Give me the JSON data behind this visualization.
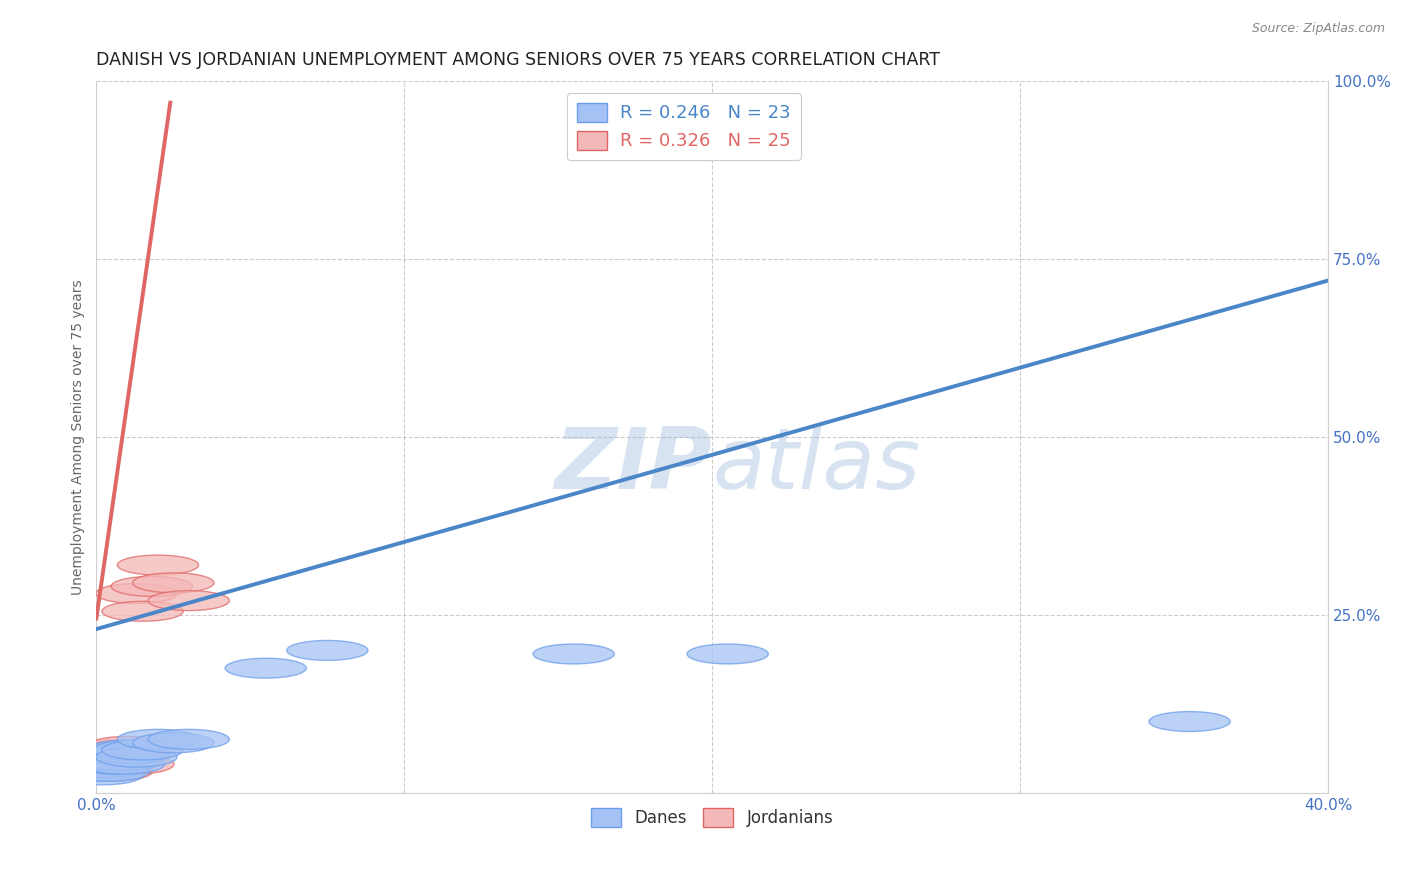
{
  "title": "DANISH VS JORDANIAN UNEMPLOYMENT AMONG SENIORS OVER 75 YEARS CORRELATION CHART",
  "source": "Source: ZipAtlas.com",
  "ylabel": "Unemployment Among Seniors over 75 years",
  "xlim": [
    0.0,
    0.4
  ],
  "ylim": [
    0.0,
    1.0
  ],
  "xticks": [
    0.0,
    0.1,
    0.2,
    0.3,
    0.4
  ],
  "xtick_labels": [
    "0.0%",
    "",
    "",
    "",
    "40.0%"
  ],
  "yticks": [
    0.0,
    0.25,
    0.5,
    0.75,
    1.0
  ],
  "ytick_labels": [
    "",
    "25.0%",
    "50.0%",
    "75.0%",
    "100.0%"
  ],
  "blue_color": "#a4c2f4",
  "pink_color": "#f4b8b8",
  "blue_edge_color": "#6d9eeb",
  "pink_edge_color": "#e06666",
  "blue_line_color": "#4a86c8",
  "pink_line_color": "#e06666",
  "blue_r": 0.246,
  "blue_n": 23,
  "pink_r": 0.326,
  "pink_n": 25,
  "watermark": "ZIPatlas",
  "watermark_color": "#c8d8f0",
  "blue_line_x0": 0.0,
  "blue_line_y0": 0.23,
  "blue_line_x1": 0.4,
  "blue_line_y1": 0.72,
  "pink_line_x0": 0.0,
  "pink_line_y0": 0.245,
  "pink_line_x1": 0.024,
  "pink_line_y1": 0.97,
  "danes_x": [
    0.001,
    0.002,
    0.003,
    0.004,
    0.004,
    0.005,
    0.006,
    0.007,
    0.008,
    0.009,
    0.01,
    0.011,
    0.012,
    0.013,
    0.015,
    0.02,
    0.025,
    0.03,
    0.055,
    0.075,
    0.155,
    0.205,
    0.355
  ],
  "danes_y": [
    0.03,
    0.025,
    0.035,
    0.03,
    0.045,
    0.05,
    0.04,
    0.055,
    0.045,
    0.04,
    0.06,
    0.055,
    0.06,
    0.05,
    0.06,
    0.075,
    0.07,
    0.075,
    0.175,
    0.2,
    0.195,
    0.195,
    0.1
  ],
  "jordanians_x": [
    0.001,
    0.001,
    0.002,
    0.002,
    0.003,
    0.003,
    0.003,
    0.004,
    0.004,
    0.005,
    0.005,
    0.006,
    0.006,
    0.007,
    0.008,
    0.009,
    0.01,
    0.011,
    0.012,
    0.013,
    0.015,
    0.018,
    0.02,
    0.025,
    0.03
  ],
  "jordanians_y": [
    0.03,
    0.035,
    0.04,
    0.045,
    0.035,
    0.04,
    0.05,
    0.045,
    0.055,
    0.03,
    0.04,
    0.055,
    0.06,
    0.045,
    0.055,
    0.06,
    0.065,
    0.055,
    0.04,
    0.28,
    0.255,
    0.29,
    0.32,
    0.295,
    0.27
  ],
  "background_color": "#ffffff",
  "title_fontsize": 12.5,
  "label_fontsize": 10,
  "tick_fontsize": 11,
  "tick_color": "#4472c4",
  "grid_color": "#c0c0c0",
  "spine_color": "#d0d0d0"
}
